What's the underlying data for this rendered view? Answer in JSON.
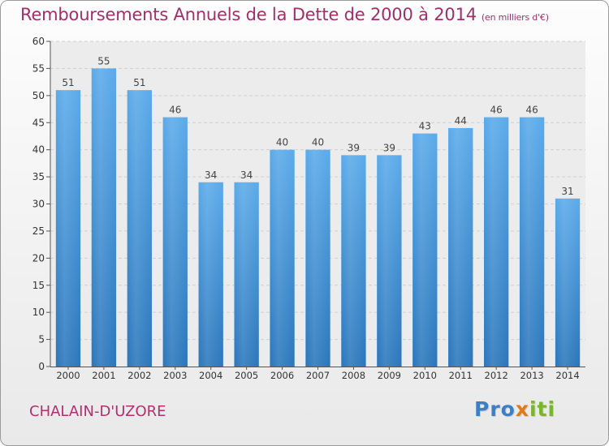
{
  "chart_data": {
    "type": "bar",
    "title": "Remboursements Annuels de la Dette de 2000 à 2014",
    "subtitle": "(en milliers d'€)",
    "categories": [
      "2000",
      "2001",
      "2002",
      "2003",
      "2004",
      "2005",
      "2006",
      "2007",
      "2008",
      "2009",
      "2010",
      "2011",
      "2012",
      "2013",
      "2014"
    ],
    "values": [
      51,
      55,
      51,
      46,
      34,
      34,
      40,
      40,
      39,
      39,
      43,
      44,
      46,
      46,
      31
    ],
    "ylim": [
      0,
      60
    ],
    "yticks": [
      0,
      5,
      10,
      15,
      20,
      25,
      30,
      35,
      40,
      45,
      50,
      55,
      60
    ],
    "xlabel": "",
    "ylabel": "",
    "bar_color": "#3b8fd6",
    "grid": true
  },
  "footer": {
    "city": "CHALAIN-D'UZORE",
    "logo": {
      "part1": "Pro",
      "part2": "x",
      "part3": "iti"
    }
  },
  "colors": {
    "title": "#a0306a",
    "city": "#b03070"
  }
}
